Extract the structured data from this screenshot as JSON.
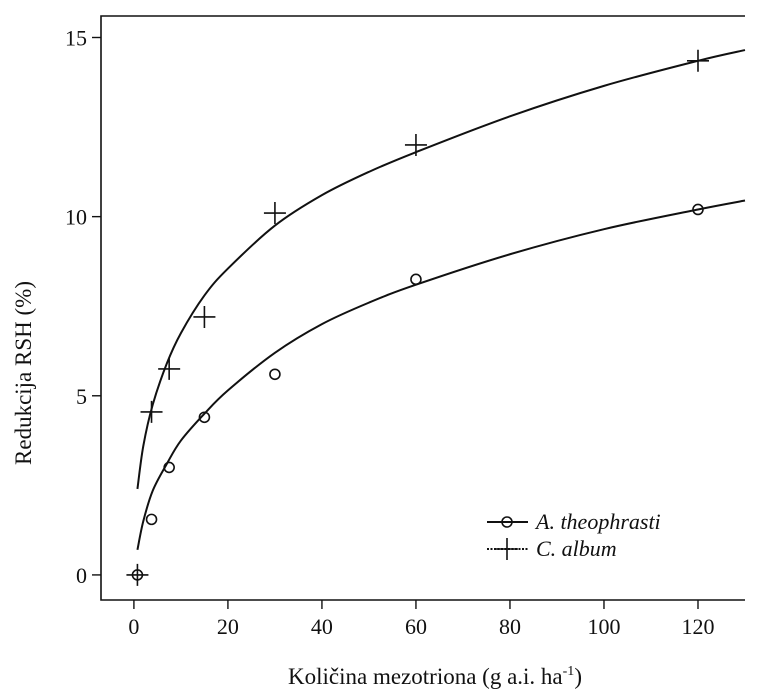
{
  "chart_data": {
    "type": "scatter",
    "title": "",
    "xlabel": "Količina mezotriona (g a.i. ha",
    "xlabel_sup": "-1",
    "xlabel_end": ")",
    "ylabel": "Redukcija RSH (%)",
    "xlim": [
      -7,
      130
    ],
    "ylim": [
      -0.7,
      15.6
    ],
    "x_ticks": [
      0,
      20,
      40,
      60,
      80,
      100,
      120
    ],
    "y_ticks": [
      0,
      5,
      10,
      15
    ],
    "grid": false,
    "legend_position": "bottom-right",
    "series": [
      {
        "name": "A. theophrasti",
        "marker": "circle",
        "points": [
          {
            "x": 0.75,
            "y": 0.0
          },
          {
            "x": 3.75,
            "y": 1.55
          },
          {
            "x": 7.5,
            "y": 3.0
          },
          {
            "x": 15,
            "y": 4.4
          },
          {
            "x": 30,
            "y": 5.6
          },
          {
            "x": 60,
            "y": 8.25
          },
          {
            "x": 120,
            "y": 10.2
          }
        ],
        "fit": [
          {
            "x": 0.75,
            "y": 0.7
          },
          {
            "x": 2,
            "y": 1.5
          },
          {
            "x": 4,
            "y": 2.35
          },
          {
            "x": 7,
            "y": 3.1
          },
          {
            "x": 10,
            "y": 3.75
          },
          {
            "x": 15,
            "y": 4.5
          },
          {
            "x": 20,
            "y": 5.15
          },
          {
            "x": 30,
            "y": 6.2
          },
          {
            "x": 40,
            "y": 7.0
          },
          {
            "x": 50,
            "y": 7.6
          },
          {
            "x": 60,
            "y": 8.1
          },
          {
            "x": 80,
            "y": 8.95
          },
          {
            "x": 100,
            "y": 9.65
          },
          {
            "x": 120,
            "y": 10.2
          },
          {
            "x": 130,
            "y": 10.45
          }
        ]
      },
      {
        "name": "C. album",
        "marker": "plus",
        "points": [
          {
            "x": 0.75,
            "y": 0.0
          },
          {
            "x": 3.75,
            "y": 4.55
          },
          {
            "x": 7.5,
            "y": 5.75
          },
          {
            "x": 15,
            "y": 7.2
          },
          {
            "x": 30,
            "y": 10.1
          },
          {
            "x": 60,
            "y": 12.0
          },
          {
            "x": 120,
            "y": 14.35
          }
        ],
        "fit": [
          {
            "x": 0.75,
            "y": 2.4
          },
          {
            "x": 2,
            "y": 3.6
          },
          {
            "x": 4,
            "y": 4.75
          },
          {
            "x": 7,
            "y": 5.9
          },
          {
            "x": 10,
            "y": 6.75
          },
          {
            "x": 15,
            "y": 7.8
          },
          {
            "x": 20,
            "y": 8.55
          },
          {
            "x": 30,
            "y": 9.75
          },
          {
            "x": 40,
            "y": 10.6
          },
          {
            "x": 50,
            "y": 11.25
          },
          {
            "x": 60,
            "y": 11.8
          },
          {
            "x": 80,
            "y": 12.8
          },
          {
            "x": 100,
            "y": 13.65
          },
          {
            "x": 120,
            "y": 14.35
          },
          {
            "x": 130,
            "y": 14.65
          }
        ]
      }
    ]
  }
}
